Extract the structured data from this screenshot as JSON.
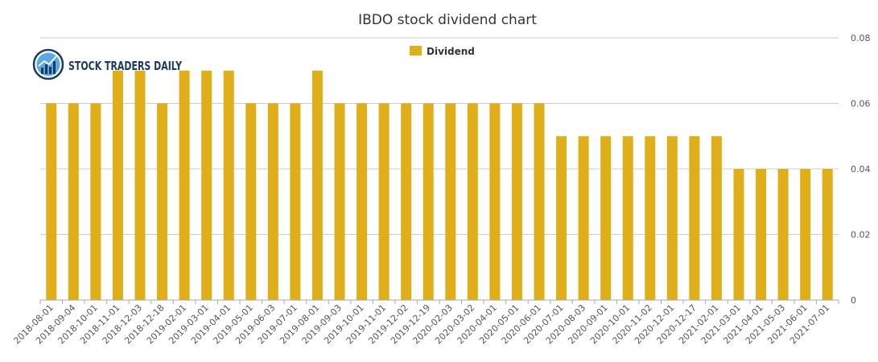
{
  "logo": {
    "text": "STOCK TRADERS DAILY"
  },
  "chart_data": {
    "type": "bar",
    "title": "IBDO stock dividend chart",
    "xlabel": "",
    "ylabel": "",
    "ylim": [
      0,
      0.08
    ],
    "yticks": [
      "0",
      "0.02",
      "0.04",
      "0.06",
      "0.08"
    ],
    "legend": {
      "position": "top-center"
    },
    "grid": true,
    "colors": {
      "bar": "#e0ae18",
      "grid": "#cccccc",
      "axis": "#aaaaaa"
    },
    "categories": [
      "2018-08-01",
      "2018-09-04",
      "2018-10-01",
      "2018-11-01",
      "2018-12-03",
      "2018-12-18",
      "2019-02-01",
      "2019-03-01",
      "2019-04-01",
      "2019-05-01",
      "2019-06-03",
      "2019-07-01",
      "2019-08-01",
      "2019-09-03",
      "2019-10-01",
      "2019-11-01",
      "2019-12-02",
      "2019-12-19",
      "2020-02-03",
      "2020-03-02",
      "2020-04-01",
      "2020-05-01",
      "2020-06-01",
      "2020-07-01",
      "2020-08-03",
      "2020-09-01",
      "2020-10-01",
      "2020-11-02",
      "2020-12-01",
      "2020-12-17",
      "2021-02-01",
      "2021-03-01",
      "2021-04-01",
      "2021-05-03",
      "2021-06-01",
      "2021-07-01"
    ],
    "series": [
      {
        "name": "Dividend",
        "values": [
          0.06,
          0.06,
          0.06,
          0.07,
          0.07,
          0.06,
          0.07,
          0.07,
          0.07,
          0.06,
          0.06,
          0.06,
          0.07,
          0.06,
          0.06,
          0.06,
          0.06,
          0.06,
          0.06,
          0.06,
          0.06,
          0.06,
          0.06,
          0.05,
          0.05,
          0.05,
          0.05,
          0.05,
          0.05,
          0.05,
          0.05,
          0.04,
          0.04,
          0.04,
          0.04,
          0.04
        ]
      }
    ]
  }
}
